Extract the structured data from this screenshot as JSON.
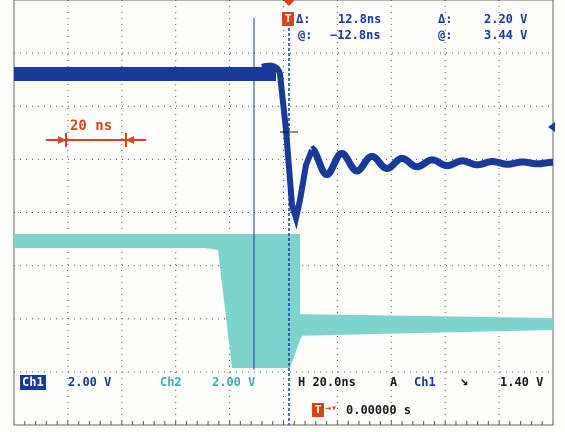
{
  "readout": {
    "delta_symbol": "Δ:",
    "at_symbol": "@:",
    "time_delta": "12.8ns",
    "time_at": "−12.8ns",
    "volt_delta_symbol": "Δ:",
    "volt_at_symbol": "@:",
    "volt_delta": "2.20 V",
    "volt_at": "3.44 V",
    "trigger_marker": "T"
  },
  "scale_marker": {
    "label": "20 ns"
  },
  "status": {
    "ch1_badge": "Ch1",
    "ch1_scale": "2.00 V",
    "ch2_label": "Ch2",
    "ch2_scale": "2.00 V",
    "horizontal": "H 20.0ns",
    "acq_mode": "A",
    "trig_source": "Ch1",
    "trig_slope": "↘",
    "trig_level": "1.40 V",
    "trig_position_marker": "T",
    "trig_position_arrow": "→▾",
    "trig_position": "0.00000 s"
  },
  "colors": {
    "ch1": "#1a3a9a",
    "ch2": "#7fd3cf",
    "cursor": "#1a3a9a",
    "marker": "#d6451b",
    "grid": "#555555"
  },
  "channels": [
    {
      "name": "Ch1",
      "high_level_v": 3.44,
      "low_level_v": 1.24,
      "settle_ringing_cycles": 8
    },
    {
      "name": "Ch2",
      "high_level_v": 3.3,
      "low_level_v": 0.9
    }
  ]
}
